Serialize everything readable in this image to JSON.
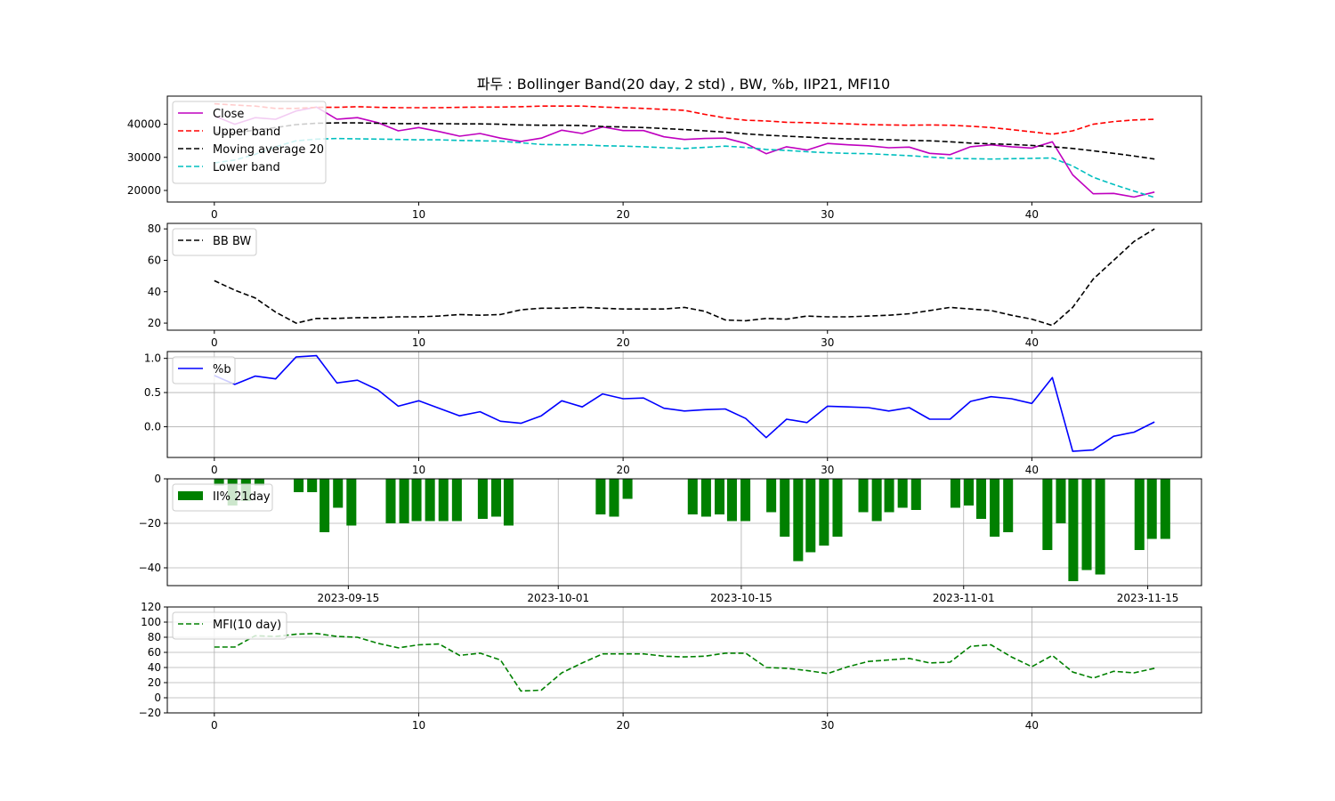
{
  "figure_title": "파두 : Bollinger Band(20 day, 2 std) , BW, %b, IIP21, MFI10",
  "chart_data": [
    {
      "type": "line",
      "x": [
        0,
        1,
        2,
        3,
        4,
        5,
        6,
        7,
        8,
        9,
        10,
        11,
        12,
        13,
        14,
        15,
        16,
        17,
        18,
        19,
        20,
        21,
        22,
        23,
        24,
        25,
        26,
        27,
        28,
        29,
        30,
        31,
        32,
        33,
        34,
        35,
        36,
        37,
        38,
        39,
        40,
        41,
        42,
        43,
        44,
        45,
        46
      ],
      "xticks": [
        0,
        10,
        20,
        30,
        40
      ],
      "xlim": [
        -2.3,
        48.3
      ],
      "ylim": [
        16500,
        48500
      ],
      "yticks": [
        20000,
        30000,
        40000
      ],
      "grid": false,
      "legend_position": "upper-left",
      "series": [
        {
          "name": "Close",
          "color": "#bf00bf",
          "style": "solid",
          "values": [
            42500,
            40000,
            42000,
            41500,
            44000,
            45200,
            41500,
            42000,
            40500,
            38000,
            39000,
            37800,
            36400,
            37200,
            35800,
            34800,
            35800,
            38200,
            37200,
            39200,
            38100,
            38100,
            36200,
            35400,
            35700,
            35800,
            34200,
            31100,
            33200,
            32200,
            34200,
            33800,
            33500,
            32900,
            33100,
            31200,
            30800,
            33200,
            33800,
            33200,
            32800,
            34700,
            24700,
            19000,
            19100,
            18000,
            19500
          ]
        },
        {
          "name": "Upper band",
          "color": "#ff0000",
          "style": "dashed",
          "values": [
            46200,
            45800,
            45500,
            44800,
            44800,
            45100,
            45100,
            45300,
            45100,
            45000,
            45000,
            45000,
            45100,
            45200,
            45200,
            45300,
            45500,
            45500,
            45500,
            45200,
            45000,
            44800,
            44500,
            44200,
            43000,
            41900,
            41200,
            41000,
            40600,
            40500,
            40300,
            40100,
            39900,
            39800,
            39700,
            39800,
            39700,
            39400,
            39000,
            38400,
            37700,
            37000,
            38000,
            40000,
            40800,
            41300,
            41500
          ]
        },
        {
          "name": "Moving average 20",
          "color": "#000000",
          "style": "dashed",
          "values": [
            37300,
            37500,
            38200,
            39000,
            39900,
            40300,
            40400,
            40400,
            40300,
            40200,
            40200,
            40200,
            40100,
            40100,
            40000,
            39800,
            39700,
            39700,
            39600,
            39300,
            39200,
            39000,
            38700,
            38400,
            38000,
            37600,
            37100,
            36700,
            36400,
            36100,
            35800,
            35600,
            35500,
            35300,
            35100,
            35000,
            34700,
            34300,
            34100,
            33900,
            33600,
            33200,
            32700,
            32000,
            31200,
            30400,
            29500
          ]
        },
        {
          "name": "Lower band",
          "color": "#00bfbf",
          "style": "dashed",
          "values": [
            28300,
            29200,
            30900,
            33200,
            35000,
            35500,
            35700,
            35600,
            35500,
            35400,
            35300,
            35300,
            35100,
            35000,
            34900,
            34400,
            33900,
            33800,
            33800,
            33500,
            33400,
            33200,
            32900,
            32700,
            33000,
            33400,
            33000,
            32400,
            32100,
            31700,
            31400,
            31200,
            31100,
            30800,
            30500,
            30100,
            29700,
            29600,
            29500,
            29600,
            29700,
            29800,
            27400,
            24000,
            21800,
            19800,
            17900
          ]
        }
      ]
    },
    {
      "type": "line",
      "x": [
        0,
        1,
        2,
        3,
        4,
        5,
        6,
        7,
        8,
        9,
        10,
        11,
        12,
        13,
        14,
        15,
        16,
        17,
        18,
        19,
        20,
        21,
        22,
        23,
        24,
        25,
        26,
        27,
        28,
        29,
        30,
        31,
        32,
        33,
        34,
        35,
        36,
        37,
        38,
        39,
        40,
        41,
        42,
        43,
        44,
        45,
        46
      ],
      "xticks": [
        0,
        10,
        20,
        30,
        40
      ],
      "xlim": [
        -2.3,
        48.3
      ],
      "ylim": [
        15.5,
        83.5
      ],
      "yticks": [
        20,
        40,
        60,
        80
      ],
      "grid": false,
      "legend_position": "upper-left",
      "series": [
        {
          "name": "BB BW",
          "color": "#000000",
          "style": "dashed",
          "values": [
            47,
            41,
            36,
            27,
            20,
            23,
            23,
            23.5,
            23.5,
            24,
            24,
            24.5,
            25.5,
            25,
            25.5,
            28.5,
            29.5,
            29.5,
            30,
            29.5,
            29,
            29,
            29,
            30,
            27.5,
            22,
            21.5,
            23,
            22.5,
            24.5,
            24,
            24,
            24.5,
            25,
            26,
            28,
            30,
            29,
            28,
            25,
            22.5,
            18.5,
            30,
            48,
            60,
            72,
            80
          ]
        }
      ]
    },
    {
      "type": "line",
      "x": [
        0,
        1,
        2,
        3,
        4,
        5,
        6,
        7,
        8,
        9,
        10,
        11,
        12,
        13,
        14,
        15,
        16,
        17,
        18,
        19,
        20,
        21,
        22,
        23,
        24,
        25,
        26,
        27,
        28,
        29,
        30,
        31,
        32,
        33,
        34,
        35,
        36,
        37,
        38,
        39,
        40,
        41,
        42,
        43,
        44,
        45,
        46
      ],
      "xticks": [
        0,
        10,
        20,
        30,
        40
      ],
      "xlim": [
        -2.3,
        48.3
      ],
      "ylim": [
        -0.45,
        1.1
      ],
      "yticks": [
        0.0,
        0.5,
        1.0
      ],
      "ytick_labels": [
        "0.0",
        "0.5",
        "1.0"
      ],
      "grid": true,
      "legend_position": "upper-left",
      "series": [
        {
          "name": "%b",
          "color": "#0000ff",
          "style": "solid",
          "values": [
            0.75,
            0.62,
            0.74,
            0.7,
            1.02,
            1.04,
            0.64,
            0.68,
            0.54,
            0.3,
            0.38,
            0.27,
            0.16,
            0.22,
            0.08,
            0.05,
            0.16,
            0.38,
            0.29,
            0.48,
            0.41,
            0.42,
            0.27,
            0.23,
            0.25,
            0.26,
            0.12,
            -0.16,
            0.11,
            0.06,
            0.3,
            0.29,
            0.28,
            0.23,
            0.28,
            0.11,
            0.11,
            0.37,
            0.44,
            0.41,
            0.34,
            0.72,
            -0.36,
            -0.34,
            -0.14,
            -0.08,
            0.07
          ]
        }
      ]
    },
    {
      "type": "bar",
      "xlim": [
        0,
        1
      ],
      "ylim": [
        -48,
        0
      ],
      "yticks": [
        0,
        -20,
        -40
      ],
      "ytick_labels": [
        "0",
        "−20",
        "−40"
      ],
      "date_ticks": [
        "2023-09-15",
        "2023-10-01",
        "2023-10-15",
        "2023-11-01",
        "2023-11-15"
      ],
      "date_tick_positions": [
        0.175,
        0.378,
        0.555,
        0.77,
        0.948
      ],
      "grid": true,
      "legend_position": "upper-left",
      "series": [
        {
          "name": "II% 21day",
          "color": "#008000",
          "bar_positions": [
            0.05,
            0.063,
            0.076,
            0.089,
            0.127,
            0.14,
            0.152,
            0.165,
            0.178,
            0.216,
            0.229,
            0.241,
            0.254,
            0.267,
            0.28,
            0.305,
            0.318,
            0.33,
            0.419,
            0.432,
            0.445,
            0.508,
            0.521,
            0.534,
            0.546,
            0.559,
            0.584,
            0.597,
            0.61,
            0.622,
            0.635,
            0.648,
            0.673,
            0.686,
            0.698,
            0.711,
            0.724,
            0.762,
            0.775,
            0.787,
            0.8,
            0.813,
            0.851,
            0.864,
            0.876,
            0.889,
            0.902,
            0.94,
            0.952,
            0.965
          ],
          "values": [
            -3,
            -12,
            -10,
            -3,
            -6,
            -6,
            -24,
            -13,
            -21,
            -20,
            -20,
            -19,
            -19,
            -19,
            -19,
            -18,
            -17,
            -21,
            -16,
            -17,
            -9,
            -16,
            -17,
            -16,
            -19,
            -19,
            -15,
            -26,
            -37,
            -33,
            -30,
            -26,
            -15,
            -19,
            -15,
            -13,
            -14,
            -13,
            -12,
            -18,
            -26,
            -24,
            -32,
            -20,
            -46,
            -41,
            -43,
            -32,
            -27,
            -27
          ]
        }
      ]
    },
    {
      "type": "line",
      "x": [
        0,
        1,
        2,
        3,
        4,
        5,
        6,
        7,
        8,
        9,
        10,
        11,
        12,
        13,
        14,
        15,
        16,
        17,
        18,
        19,
        20,
        21,
        22,
        23,
        24,
        25,
        26,
        27,
        28,
        29,
        30,
        31,
        32,
        33,
        34,
        35,
        36,
        37,
        38,
        39,
        40,
        41,
        42,
        43,
        44,
        45,
        46
      ],
      "xticks": [
        0,
        10,
        20,
        30,
        40
      ],
      "xlim": [
        -2.3,
        48.3
      ],
      "ylim": [
        -20,
        120
      ],
      "yticks": [
        -20,
        0,
        20,
        40,
        60,
        80,
        100,
        120
      ],
      "ytick_labels": [
        "−20",
        "0",
        "20",
        "40",
        "60",
        "80",
        "100",
        "120"
      ],
      "grid": true,
      "legend_position": "upper-left",
      "series": [
        {
          "name": "MFI(10 day)",
          "color": "#008000",
          "style": "dashed",
          "values": [
            67,
            67,
            82,
            81,
            84,
            85,
            81,
            80,
            72,
            66,
            70,
            71,
            56,
            59,
            50,
            9,
            10,
            33,
            46,
            58,
            58,
            58,
            55,
            54,
            55,
            59,
            59,
            40,
            39,
            36,
            32,
            41,
            48,
            50,
            52,
            46,
            47,
            68,
            70,
            54,
            41,
            56,
            34,
            26,
            35,
            33,
            39
          ]
        }
      ]
    }
  ]
}
